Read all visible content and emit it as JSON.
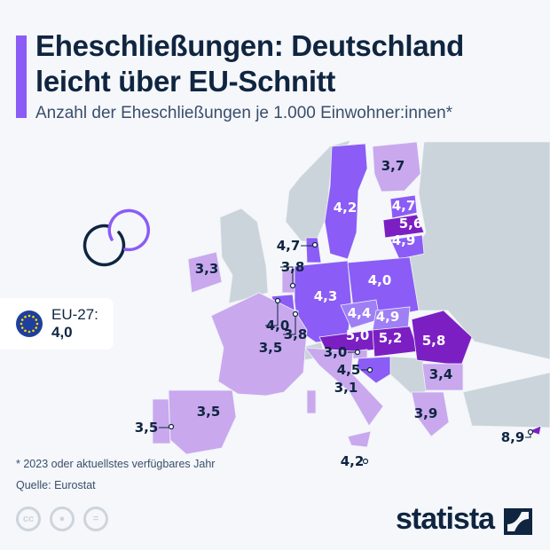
{
  "header": {
    "title_line1": "Eheschließungen: Deutschland",
    "title_line2": "leicht über EU-Schnitt",
    "subtitle": "Anzahl der Eheschließungen je 1.000 Einwohner:innen*"
  },
  "eu_average": {
    "label": "EU-27:",
    "value": "4,0",
    "icon": "eu-flag-icon"
  },
  "colors": {
    "accent": "#8b5cf6",
    "low": "#c9a8ee",
    "mid": "#8b5cf6",
    "mid_light": "#9f7ff5",
    "high": "#7b1fc3",
    "non_eu": "#cad4da",
    "text_dark": "#0f2540"
  },
  "map_values": [
    {
      "country": "Finnland",
      "value": "3,7"
    },
    {
      "country": "Schweden",
      "value": "4,2"
    },
    {
      "country": "Estland",
      "value": "4,7"
    },
    {
      "country": "Lettland",
      "value": "5,6"
    },
    {
      "country": "Litauen",
      "value": "4,9"
    },
    {
      "country": "Dänemark",
      "value": "4,7"
    },
    {
      "country": "Irland",
      "value": "3,3"
    },
    {
      "country": "Niederlande",
      "value": "3,8"
    },
    {
      "country": "Deutschland",
      "value": "4,3"
    },
    {
      "country": "Polen",
      "value": "4,0"
    },
    {
      "country": "Belgien",
      "value": "4,0"
    },
    {
      "country": "Luxemburg",
      "value": "3,8"
    },
    {
      "country": "Tschechien",
      "value": "4,4"
    },
    {
      "country": "Slowakei",
      "value": "4,9"
    },
    {
      "country": "Österreich",
      "value": "5,0"
    },
    {
      "country": "Ungarn",
      "value": "5,2"
    },
    {
      "country": "Rumänien",
      "value": "5,8"
    },
    {
      "country": "Frankreich",
      "value": "3,5"
    },
    {
      "country": "Slowenien",
      "value": "3,0"
    },
    {
      "country": "Kroatien",
      "value": "4,5"
    },
    {
      "country": "Italien",
      "value": "3,1"
    },
    {
      "country": "Bulgarien",
      "value": "3,4"
    },
    {
      "country": "Griechenland",
      "value": "3,9"
    },
    {
      "country": "Spanien",
      "value": "3,5"
    },
    {
      "country": "Portugal",
      "value": "3,5"
    },
    {
      "country": "Malta",
      "value": "4,2"
    },
    {
      "country": "Zypern",
      "value": "8,9"
    }
  ],
  "footer": {
    "note": "* 2023 oder aktuellstes verfügbares Jahr",
    "source": "Quelle: Eurostat",
    "brand": "statista"
  }
}
